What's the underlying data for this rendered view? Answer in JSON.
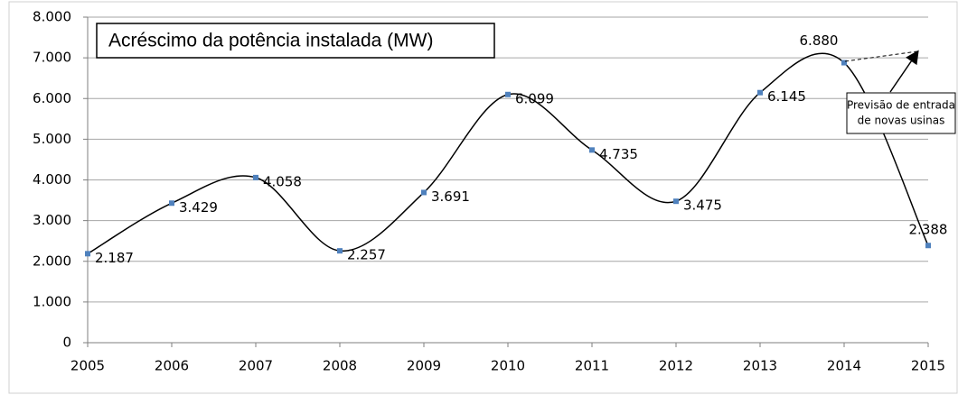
{
  "chart_data": {
    "type": "line",
    "title": "Acréscimo da potência instalada (MW)",
    "annotation": [
      "Previsão de entrada",
      "de novas usinas"
    ],
    "categories": [
      "2005",
      "2006",
      "2007",
      "2008",
      "2009",
      "2010",
      "2011",
      "2012",
      "2013",
      "2014",
      "2015"
    ],
    "values": [
      2187,
      3429,
      4058,
      2257,
      3691,
      6099,
      4735,
      3475,
      6145,
      6880,
      2388
    ],
    "value_labels": [
      "2.187",
      "3.429",
      "4.058",
      "2.257",
      "3.691",
      "6.099",
      "4.735",
      "3.475",
      "6.145",
      "6.880",
      "2.388"
    ],
    "color": "#4f81bd",
    "ylim": [
      0,
      8000
    ],
    "yticks": [
      0,
      {
        "value": 1000,
        "label": "1.000"
      },
      {
        "value": 2000,
        "label": "2.000"
      },
      {
        "value": 3000,
        "label": "3.000"
      },
      {
        "value": 4000,
        "label": "4.000"
      },
      {
        "value": 5000,
        "label": "5.000"
      },
      {
        "value": 6000,
        "label": "6.000"
      },
      {
        "value": 7000,
        "label": "7.000"
      },
      {
        "value": 8000,
        "label": "8.000"
      }
    ],
    "grid": true
  }
}
